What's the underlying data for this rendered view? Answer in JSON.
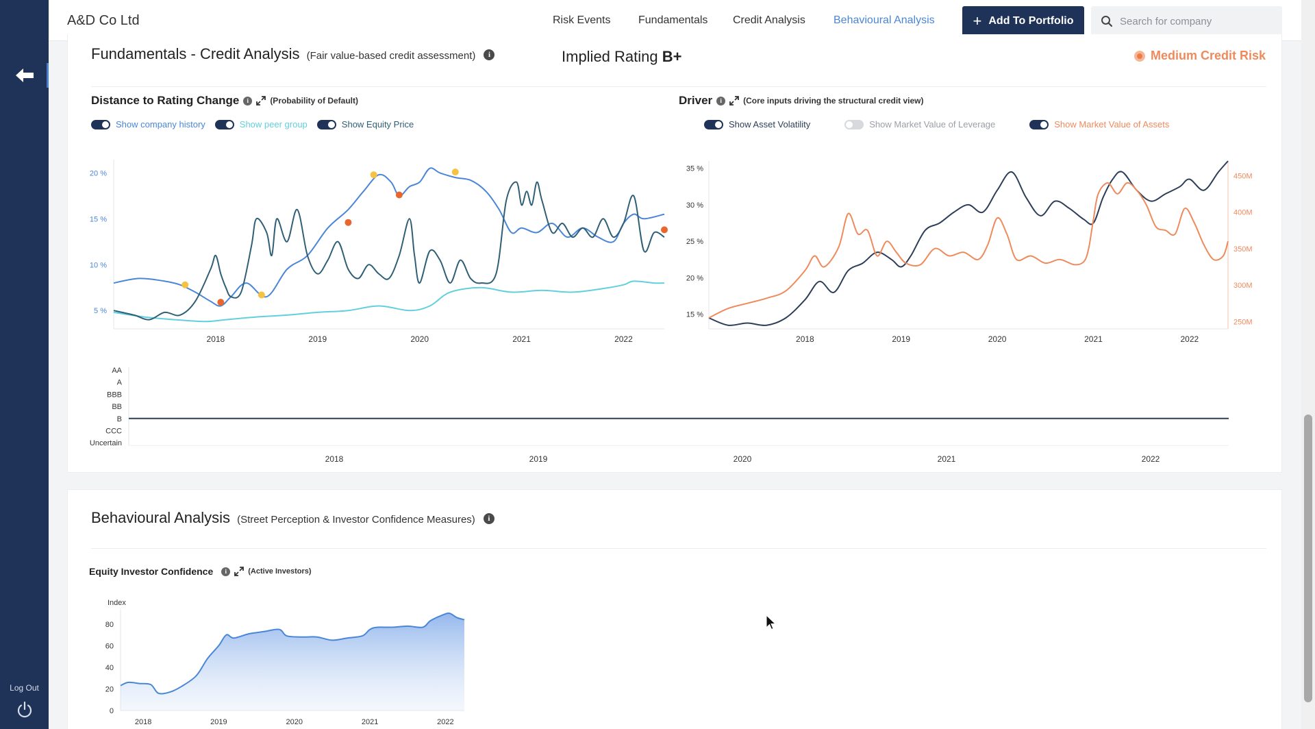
{
  "app": {
    "company_name": "A&D Co Ltd",
    "nav": [
      "Risk Events",
      "Fundamentals",
      "Credit Analysis",
      "Behavioural Analysis"
    ],
    "active_nav": "Behavioural Analysis",
    "add_button": "Add To Portfolio",
    "search_placeholder": "Search for company",
    "logout": "Log Out"
  },
  "colors": {
    "navy": "#1f3358",
    "blue": "#4a86d8",
    "teal": "#2f5f76",
    "cyan": "#62cfdc",
    "orange": "#ee8a5c",
    "marker_yellow": "#f5c242",
    "marker_orange": "#e8672f"
  },
  "fundamentals": {
    "title": "Fundamentals - Credit Analysis",
    "subtitle": "(Fair value-based credit assessment)",
    "implied_label": "Implied Rating",
    "implied_value": "B+",
    "risk_label": "Medium Credit Risk"
  },
  "distance_chart": {
    "title": "Distance to Rating Change",
    "note": "(Probability of Default)",
    "toggles": [
      {
        "label": "Show company history",
        "on": true,
        "color": "#4a86d8"
      },
      {
        "label": "Show peer group",
        "on": true,
        "color": "#62cfdc"
      },
      {
        "label": "Show Equity Price",
        "on": true,
        "color": "#2f5f76"
      }
    ]
  },
  "driver_chart": {
    "title": "Driver",
    "note": "(Core inputs driving the structural credit view)",
    "toggles": [
      {
        "label": "Show Asset Volatility",
        "on": true,
        "color": "#2c3e58"
      },
      {
        "label": "Show Market Value of Leverage",
        "on": false,
        "color": "#9a9ea6"
      },
      {
        "label": "Show Market Value of Assets",
        "on": true,
        "color": "#ee8a5c"
      }
    ]
  },
  "behavioural": {
    "title": "Behavioural Analysis",
    "subtitle": "(Street Perception & Investor Confidence Measures)",
    "confidence_title": "Equity Investor Confidence",
    "confidence_note": "(Active Investors)"
  },
  "chart_data": [
    {
      "type": "line",
      "id": "distance",
      "x_ticks": [
        "2018",
        "2019",
        "2020",
        "2021",
        "2022"
      ],
      "x_range": [
        2017.0,
        2022.4
      ],
      "y_ticks": [
        "5 %",
        "10 %",
        "15 %",
        "20 %"
      ],
      "ylim": [
        3,
        21
      ],
      "series": [
        {
          "name": "Show company history",
          "color": "#4a86d8",
          "x": [
            2017.0,
            2017.25,
            2017.5,
            2017.65,
            2017.8,
            2017.95,
            2018.05,
            2018.15,
            2018.3,
            2018.5,
            2018.7,
            2018.9,
            2019.1,
            2019.3,
            2019.45,
            2019.6,
            2019.72,
            2019.8,
            2019.9,
            2020.0,
            2020.1,
            2020.2,
            2020.35,
            2020.5,
            2020.65,
            2020.78,
            2020.9,
            2021.0,
            2021.15,
            2021.3,
            2021.45,
            2021.6,
            2021.75,
            2021.9,
            2022.0,
            2022.1,
            2022.2,
            2022.4
          ],
          "y": [
            8.0,
            8.5,
            8.2,
            7.8,
            7.0,
            6.0,
            5.5,
            6.5,
            8.0,
            6.5,
            9.5,
            11.0,
            14.0,
            16.0,
            18.0,
            19.8,
            19.0,
            17.5,
            18.5,
            19.0,
            20.5,
            20.0,
            19.5,
            19.2,
            18.0,
            16.0,
            13.5,
            14.0,
            13.5,
            14.5,
            13.0,
            14.0,
            13.0,
            12.5,
            14.5,
            15.5,
            15.0,
            15.5
          ]
        },
        {
          "name": "Show peer group",
          "color": "#62cfdc",
          "x": [
            2017.0,
            2017.3,
            2017.6,
            2017.9,
            2018.1,
            2018.4,
            2018.7,
            2019.0,
            2019.3,
            2019.6,
            2019.9,
            2020.1,
            2020.3,
            2020.6,
            2020.9,
            2021.2,
            2021.5,
            2021.8,
            2022.0,
            2022.1,
            2022.3,
            2022.4
          ],
          "y": [
            4.8,
            4.3,
            4.0,
            3.8,
            4.0,
            4.3,
            4.5,
            4.8,
            5.0,
            5.5,
            5.0,
            5.5,
            7.0,
            7.5,
            7.0,
            7.2,
            7.0,
            7.4,
            7.8,
            8.2,
            8.0,
            8.0
          ]
        },
        {
          "name": "Show Equity Price",
          "color": "#2f5f76",
          "x": [
            2017.0,
            2017.2,
            2017.35,
            2017.5,
            2017.65,
            2017.8,
            2017.95,
            2018.0,
            2018.05,
            2018.1,
            2018.15,
            2018.25,
            2018.35,
            2018.4,
            2018.5,
            2018.55,
            2018.6,
            2018.7,
            2018.8,
            2018.9,
            2019.0,
            2019.1,
            2019.2,
            2019.3,
            2019.4,
            2019.5,
            2019.6,
            2019.7,
            2019.8,
            2019.9,
            2019.95,
            2020.0,
            2020.1,
            2020.2,
            2020.3,
            2020.4,
            2020.5,
            2020.6,
            2020.75,
            2020.85,
            2020.95,
            2021.0,
            2021.05,
            2021.1,
            2021.15,
            2021.2,
            2021.3,
            2021.4,
            2021.5,
            2021.6,
            2021.7,
            2021.8,
            2021.9,
            2022.0,
            2022.1,
            2022.2,
            2022.3,
            2022.4
          ],
          "y": [
            5.0,
            4.5,
            4.0,
            4.8,
            4.5,
            6.0,
            9.5,
            11.0,
            9.0,
            7.5,
            6.5,
            7.0,
            12.0,
            15.0,
            13.5,
            11.0,
            15.0,
            12.5,
            16.0,
            11.0,
            9.0,
            10.5,
            12.5,
            9.5,
            8.5,
            10.0,
            9.0,
            8.5,
            11.0,
            15.0,
            11.0,
            8.0,
            11.5,
            10.5,
            8.0,
            10.5,
            8.5,
            8.0,
            9.0,
            17.0,
            19.0,
            16.5,
            18.0,
            16.5,
            19.0,
            17.0,
            13.5,
            14.5,
            13.0,
            14.0,
            13.0,
            15.0,
            13.0,
            14.5,
            17.5,
            11.5,
            13.5,
            13.0
          ]
        }
      ],
      "markers_yellow": [
        [
          2017.7,
          7.8
        ],
        [
          2018.45,
          6.7
        ],
        [
          2019.55,
          19.8
        ],
        [
          2020.35,
          20.1
        ]
      ],
      "markers_orange": [
        [
          2018.05,
          5.9
        ],
        [
          2019.3,
          14.6
        ],
        [
          2019.8,
          17.6
        ],
        [
          2022.4,
          13.8
        ]
      ]
    },
    {
      "type": "line",
      "id": "driver",
      "x_ticks": [
        "2018",
        "2019",
        "2020",
        "2021",
        "2022"
      ],
      "x_range": [
        2017.0,
        2022.4
      ],
      "y_left_ticks": [
        "15 %",
        "20 %",
        "25 %",
        "30 %",
        "35 %"
      ],
      "y_left_lim": [
        13,
        36
      ],
      "y_right_ticks": [
        "250M",
        "300M",
        "350M",
        "400M",
        "450M"
      ],
      "y_right_lim": [
        240,
        470
      ],
      "series": [
        {
          "name": "Show Asset Volatility",
          "axis": "left",
          "color": "#2c3e58",
          "x": [
            2017.0,
            2017.2,
            2017.4,
            2017.6,
            2017.8,
            2018.0,
            2018.15,
            2018.3,
            2018.45,
            2018.6,
            2018.75,
            2018.9,
            2019.0,
            2019.1,
            2019.25,
            2019.4,
            2019.55,
            2019.7,
            2019.85,
            2020.0,
            2020.15,
            2020.3,
            2020.45,
            2020.6,
            2020.75,
            2020.9,
            2021.0,
            2021.1,
            2021.2,
            2021.3,
            2021.45,
            2021.6,
            2021.75,
            2021.9,
            2022.0,
            2022.15,
            2022.3,
            2022.4
          ],
          "y": [
            14.5,
            13.5,
            13.8,
            13.5,
            14.5,
            17.0,
            19.5,
            18.0,
            21.0,
            22.0,
            23.5,
            22.5,
            21.5,
            23.0,
            26.5,
            27.5,
            29.0,
            30.0,
            29.0,
            32.0,
            34.5,
            31.0,
            28.5,
            30.5,
            29.5,
            28.0,
            27.5,
            31.0,
            33.5,
            34.5,
            32.0,
            30.5,
            31.5,
            32.5,
            33.5,
            32.0,
            34.5,
            36.0
          ]
        },
        {
          "name": "Show Market Value of Assets",
          "axis": "right",
          "color": "#ee8a5c",
          "x": [
            2017.0,
            2017.2,
            2017.4,
            2017.6,
            2017.8,
            2018.0,
            2018.1,
            2018.2,
            2018.35,
            2018.45,
            2018.55,
            2018.65,
            2018.75,
            2018.85,
            2018.95,
            2019.05,
            2019.2,
            2019.35,
            2019.5,
            2019.65,
            2019.8,
            2019.9,
            2020.0,
            2020.1,
            2020.2,
            2020.35,
            2020.5,
            2020.65,
            2020.8,
            2020.9,
            2020.95,
            2021.0,
            2021.05,
            2021.15,
            2021.25,
            2021.35,
            2021.45,
            2021.55,
            2021.65,
            2021.75,
            2021.85,
            2021.95,
            2022.05,
            2022.15,
            2022.25,
            2022.35,
            2022.4
          ],
          "y": [
            255,
            268,
            275,
            282,
            292,
            320,
            340,
            325,
            352,
            398,
            370,
            375,
            340,
            360,
            345,
            330,
            328,
            350,
            340,
            345,
            335,
            355,
            392,
            370,
            335,
            340,
            330,
            335,
            328,
            332,
            350,
            390,
            425,
            440,
            425,
            440,
            430,
            410,
            380,
            375,
            370,
            405,
            385,
            355,
            335,
            340,
            360
          ]
        }
      ]
    },
    {
      "type": "line",
      "id": "rating",
      "x_ticks": [
        "2018",
        "2019",
        "2020",
        "2021",
        "2022"
      ],
      "x_range": [
        2017.0,
        2022.4
      ],
      "y_categories": [
        "AA",
        "A",
        "BBB",
        "BB",
        "B",
        "CCC",
        "Uncertain"
      ],
      "series": [
        {
          "name": "rating",
          "color": "#2c3e58",
          "x": [
            2017.0,
            2022.4
          ],
          "y": [
            "B",
            "B"
          ]
        }
      ]
    },
    {
      "type": "area",
      "id": "confidence",
      "ylabel": "Index",
      "x_ticks": [
        "2018",
        "2019",
        "2020",
        "2021",
        "2022"
      ],
      "x_range": [
        2017.7,
        2022.25
      ],
      "y_ticks": [
        "0",
        "20",
        "40",
        "60",
        "80"
      ],
      "ylim": [
        0,
        90
      ],
      "series": [
        {
          "name": "Equity Investor Confidence",
          "color": "#4a86d8",
          "x": [
            2017.7,
            2017.8,
            2017.95,
            2018.1,
            2018.2,
            2018.35,
            2018.5,
            2018.7,
            2018.85,
            2019.0,
            2019.1,
            2019.2,
            2019.4,
            2019.6,
            2019.8,
            2019.9,
            2020.1,
            2020.3,
            2020.5,
            2020.7,
            2020.9,
            2021.0,
            2021.1,
            2021.3,
            2021.5,
            2021.7,
            2021.8,
            2021.95,
            2022.05,
            2022.15,
            2022.25
          ],
          "y": [
            23,
            26,
            25,
            24,
            16,
            17,
            22,
            32,
            48,
            60,
            70,
            67,
            71,
            73,
            75,
            69,
            68,
            68,
            65,
            67,
            69,
            75,
            77,
            77,
            78,
            77,
            83,
            88,
            90,
            86,
            84
          ]
        }
      ]
    }
  ]
}
